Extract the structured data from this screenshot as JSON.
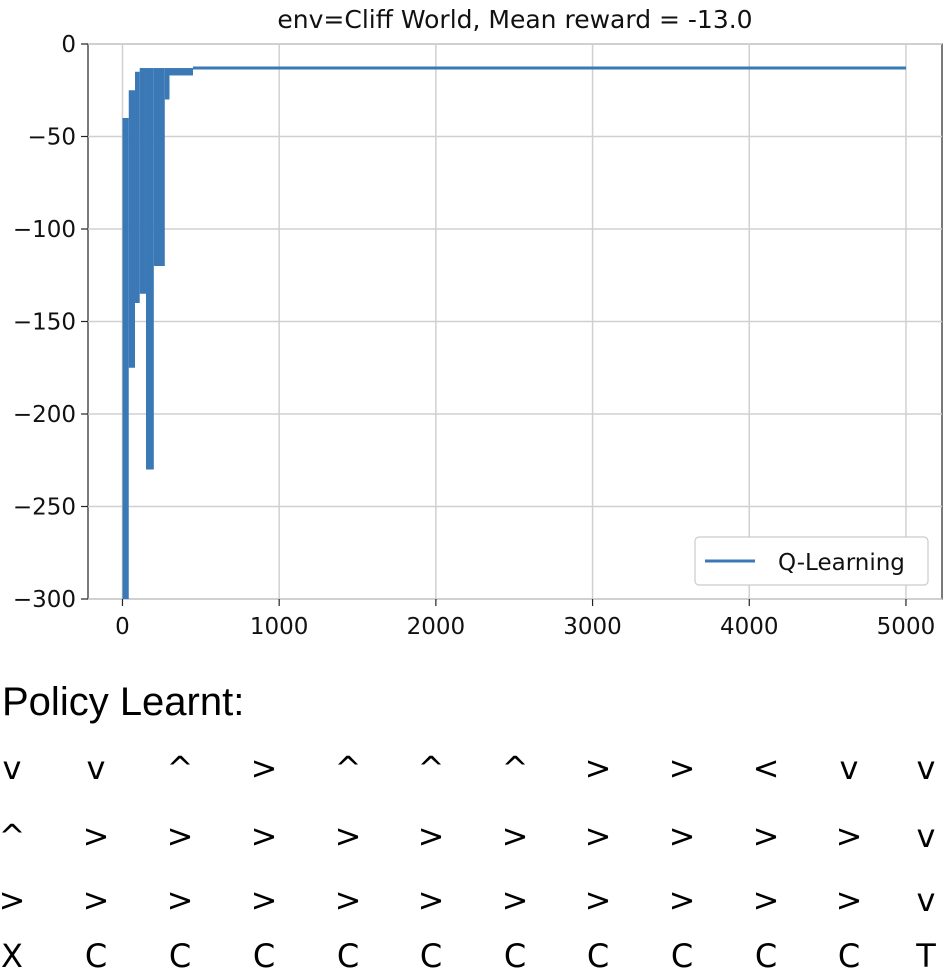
{
  "chart_data": {
    "type": "line",
    "title": "env=Cliff World, Mean reward = -13.0",
    "xlabel": "",
    "ylabel": "",
    "xlim": [
      -220,
      5230
    ],
    "ylim": [
      -300,
      0
    ],
    "xticks": [
      0,
      1000,
      2000,
      3000,
      4000,
      5000
    ],
    "yticks": [
      0,
      -50,
      -100,
      -150,
      -200,
      -250,
      -300
    ],
    "xtick_labels": [
      "0",
      "1000",
      "2000",
      "3000",
      "4000",
      "5000"
    ],
    "ytick_labels": [
      "0",
      "−50",
      "−100",
      "−150",
      "−200",
      "−250",
      "−300"
    ],
    "grid": true,
    "legend_position": "lower-right",
    "series": [
      {
        "name": "Q-Learning",
        "color": "#3a78b6",
        "segments": [
          {
            "x_start": 0,
            "x_end": 40,
            "y_min": -300,
            "y_max": -40
          },
          {
            "x_start": 40,
            "x_end": 80,
            "y_min": -175,
            "y_max": -25
          },
          {
            "x_start": 80,
            "x_end": 110,
            "y_min": -140,
            "y_max": -15
          },
          {
            "x_start": 110,
            "x_end": 150,
            "y_min": -135,
            "y_max": -13
          },
          {
            "x_start": 150,
            "x_end": 200,
            "y_min": -230,
            "y_max": -13
          },
          {
            "x_start": 200,
            "x_end": 270,
            "y_min": -120,
            "y_max": -13
          },
          {
            "x_start": 270,
            "x_end": 300,
            "y_min": -30,
            "y_max": -13
          },
          {
            "x_start": 300,
            "x_end": 450,
            "y_min": -17,
            "y_max": -13
          }
        ],
        "steady_value": -13,
        "steady_from": 450,
        "steady_to": 5000
      }
    ]
  },
  "policy": {
    "heading": "Policy Learnt:",
    "rows": [
      [
        "v",
        "v",
        "^",
        ">",
        "^",
        "^",
        "^",
        ">",
        ">",
        "<",
        "v",
        "v"
      ],
      [
        "^",
        ">",
        ">",
        ">",
        ">",
        ">",
        ">",
        ">",
        ">",
        ">",
        ">",
        "v"
      ],
      [
        ">",
        ">",
        ">",
        ">",
        ">",
        ">",
        ">",
        ">",
        ">",
        ">",
        ">",
        "v"
      ],
      [
        "X",
        "C",
        "C",
        "C",
        "C",
        "C",
        "C",
        "C",
        "C",
        "C",
        "C",
        "T"
      ]
    ]
  }
}
